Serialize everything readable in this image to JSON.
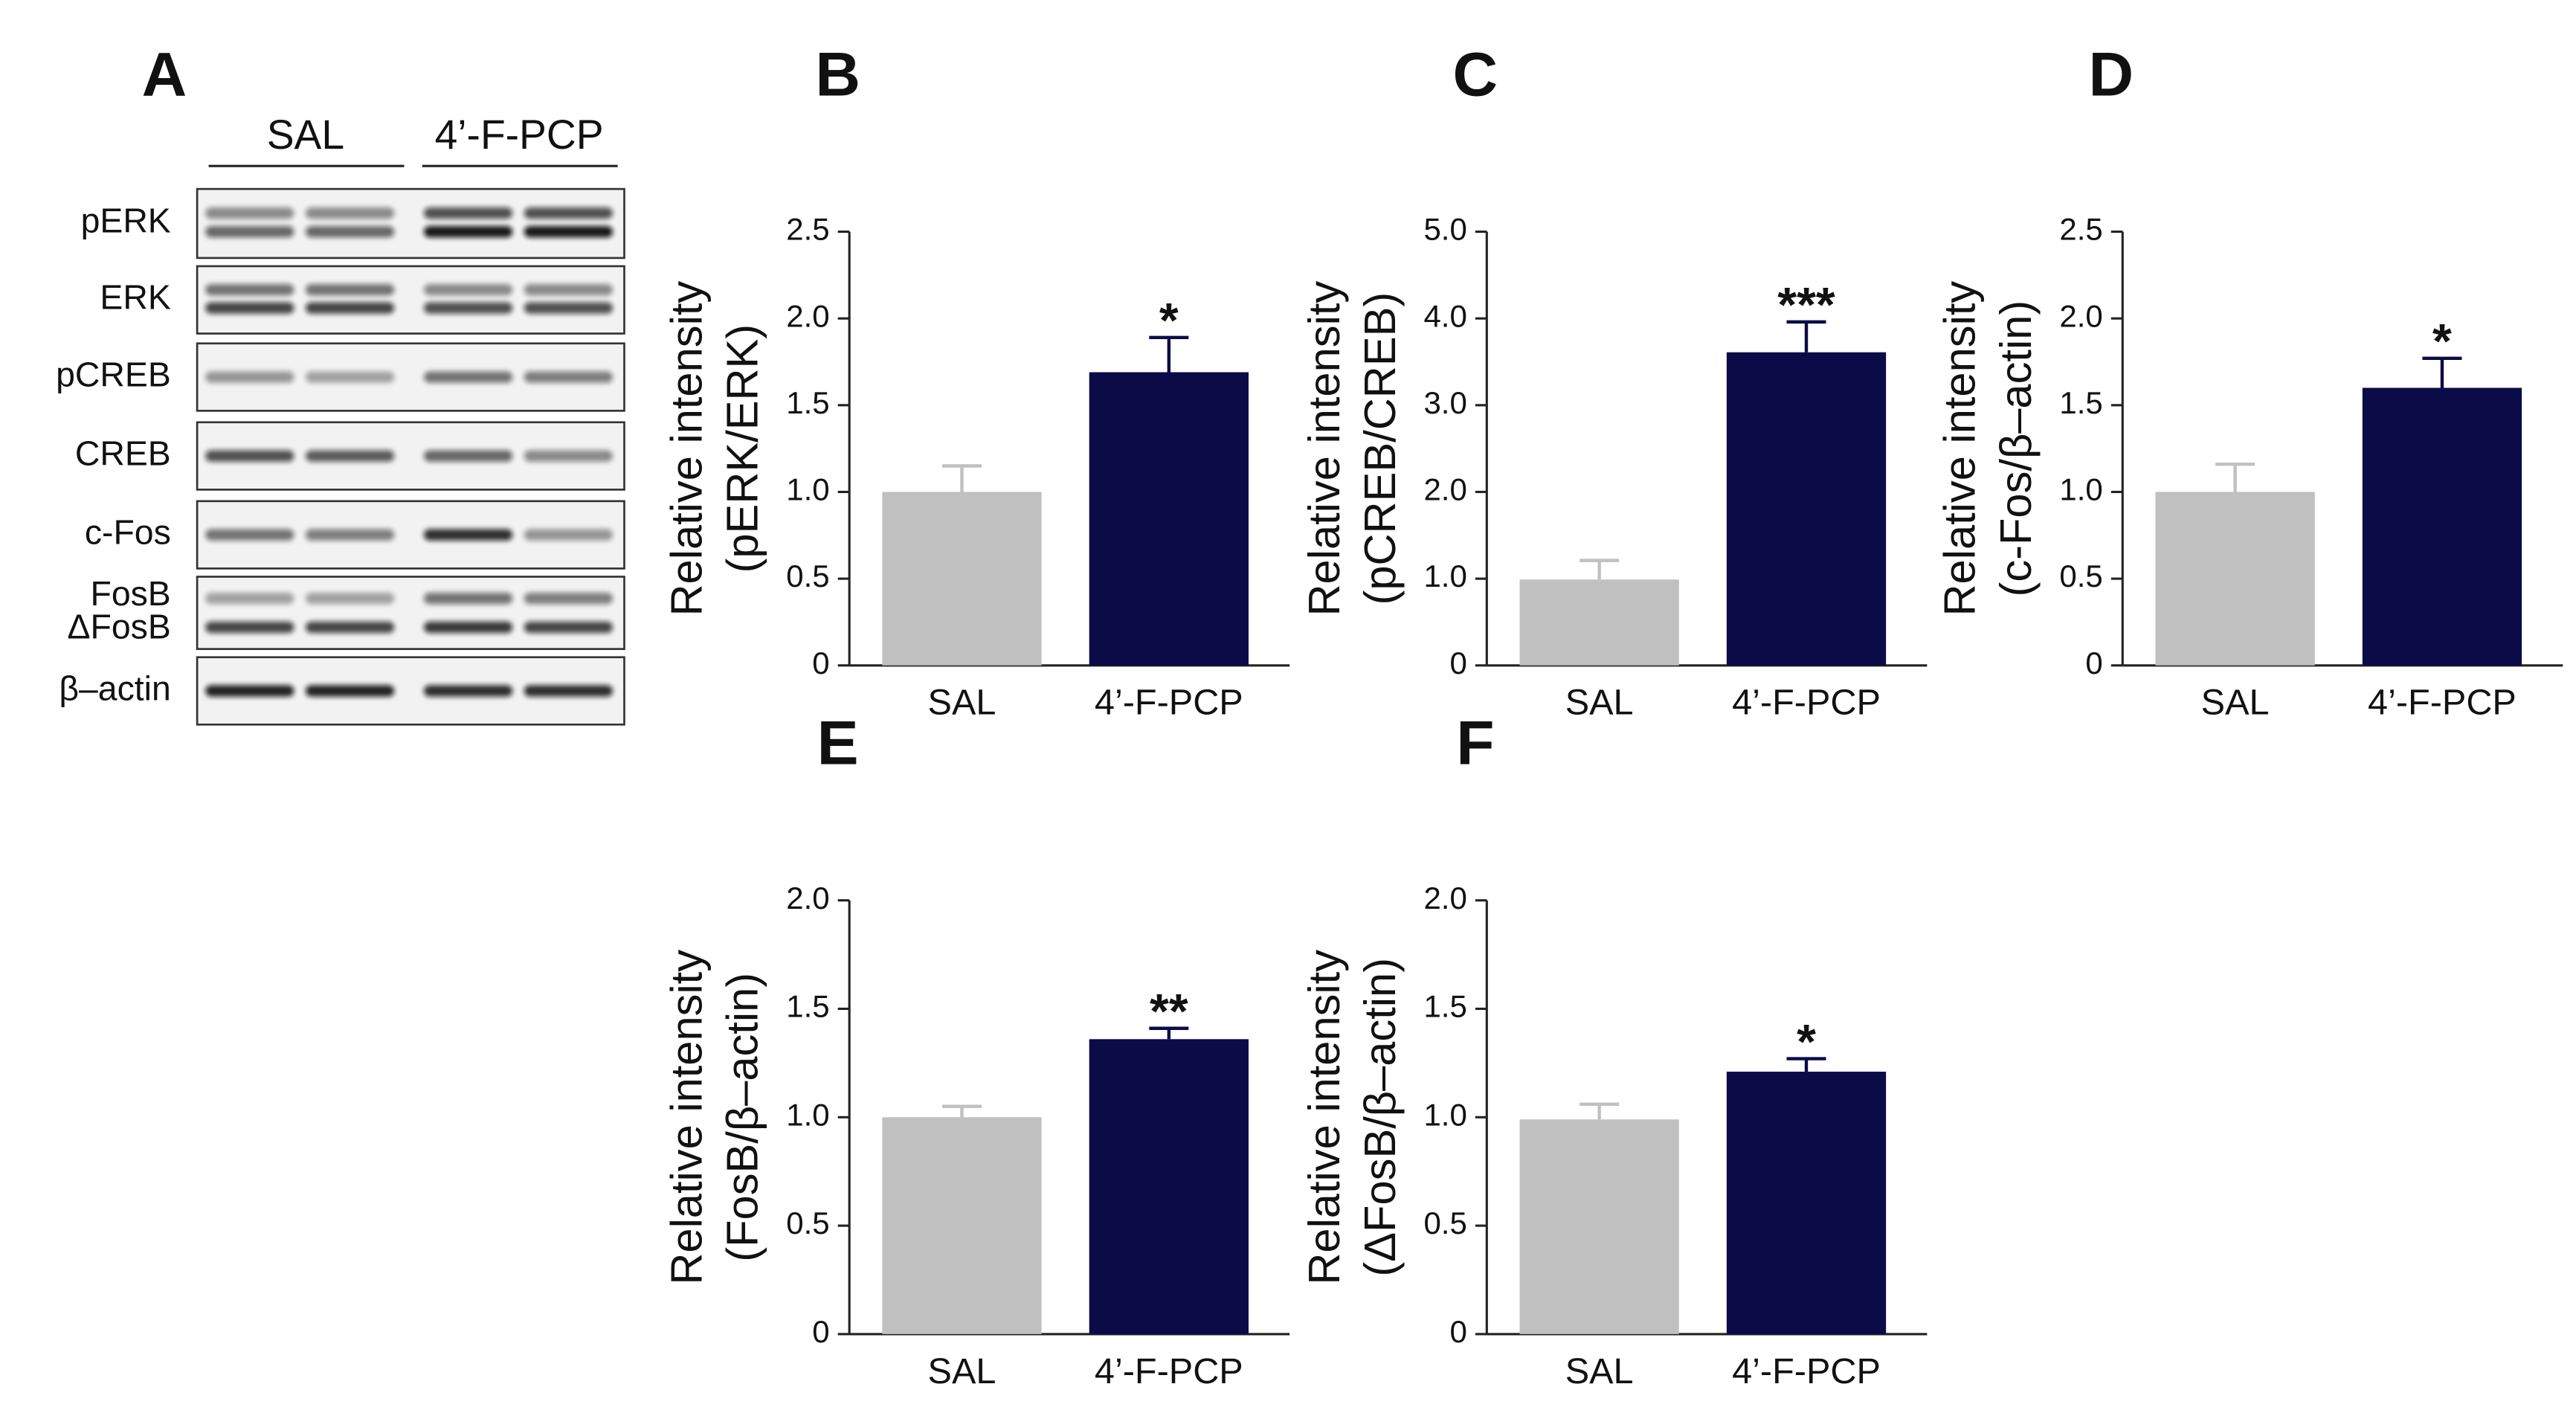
{
  "blot": {
    "panel": "A",
    "groups": [
      "SAL",
      "4’-F-PCP"
    ],
    "rows": [
      "pERK",
      "ERK",
      "pCREB",
      "CREB",
      "c-Fos",
      "FosB",
      "ΔFosB",
      "β–actin"
    ]
  },
  "chart_data": [
    {
      "type": "bar",
      "panel": "B",
      "ylabel": [
        "Relative intensity",
        "(pERK/ERK)"
      ],
      "categories": [
        "SAL",
        "4’-F-PCP"
      ],
      "values": [
        1.0,
        1.69
      ],
      "errors": [
        0.15,
        0.2
      ],
      "colors": [
        "#c0c0c0",
        "#0b0b47"
      ],
      "annotation": "*",
      "ylim": [
        0,
        2.5
      ],
      "yticks": [
        0,
        0.5,
        {
          "value": 1,
          "label": "1.0"
        },
        1.5,
        {
          "value": 2,
          "label": "2.0"
        },
        2.5
      ]
    },
    {
      "type": "bar",
      "panel": "C",
      "ylabel": [
        "Relative intensity",
        "(pCREB/CREB)"
      ],
      "categories": [
        "SAL",
        "4’-F-PCP"
      ],
      "values": [
        0.99,
        3.61
      ],
      "errors": [
        0.22,
        0.35
      ],
      "colors": [
        "#c0c0c0",
        "#0b0b47"
      ],
      "annotation": "***",
      "ylim": [
        0,
        5
      ],
      "yticks": [
        0,
        {
          "value": 1,
          "label": "1.0"
        },
        {
          "value": 2,
          "label": "2.0"
        },
        {
          "value": 3,
          "label": "3.0"
        },
        {
          "value": 4,
          "label": "4.0"
        },
        {
          "value": 5,
          "label": "5.0"
        }
      ]
    },
    {
      "type": "bar",
      "panel": "D",
      "ylabel": [
        "Relative intensity",
        "(c-Fos/β–actin)"
      ],
      "categories": [
        "SAL",
        "4’-F-PCP"
      ],
      "values": [
        1.0,
        1.6
      ],
      "errors": [
        0.16,
        0.17
      ],
      "colors": [
        "#c0c0c0",
        "#0b0b47"
      ],
      "annotation": "*",
      "ylim": [
        0,
        2.5
      ],
      "yticks": [
        0,
        0.5,
        {
          "value": 1,
          "label": "1.0"
        },
        1.5,
        {
          "value": 2,
          "label": "2.0"
        },
        2.5
      ]
    },
    {
      "type": "bar",
      "panel": "E",
      "ylabel": [
        "Relative intensity",
        "(FosB/β–actin)"
      ],
      "categories": [
        "SAL",
        "4’-F-PCP"
      ],
      "values": [
        1.0,
        1.36
      ],
      "errors": [
        0.05,
        0.05
      ],
      "colors": [
        "#c0c0c0",
        "#0b0b47"
      ],
      "annotation": "**",
      "ylim": [
        0,
        2
      ],
      "yticks": [
        0,
        0.5,
        {
          "value": 1,
          "label": "1.0"
        },
        1.5,
        {
          "value": 2,
          "label": "2.0"
        }
      ]
    },
    {
      "type": "bar",
      "panel": "F",
      "ylabel": [
        "Relative intensity",
        "(ΔFosB/β–actin)"
      ],
      "categories": [
        "SAL",
        "4’-F-PCP"
      ],
      "values": [
        0.99,
        1.21
      ],
      "errors": [
        0.07,
        0.06
      ],
      "colors": [
        "#c0c0c0",
        "#0b0b47"
      ],
      "annotation": "*",
      "ylim": [
        0,
        2
      ],
      "yticks": [
        0,
        0.5,
        {
          "value": 1,
          "label": "1.0"
        },
        1.5,
        {
          "value": 2,
          "label": "2.0"
        }
      ]
    }
  ]
}
